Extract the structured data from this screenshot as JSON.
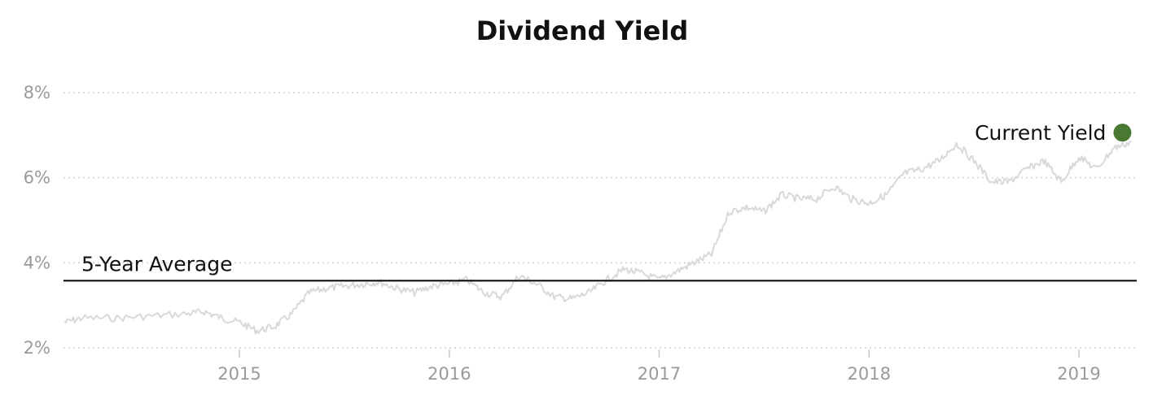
{
  "chart_data": {
    "type": "line",
    "title": "Dividend Yield",
    "xlabel": "",
    "ylabel": "",
    "x_ticks": [
      "2015",
      "2016",
      "2017",
      "2018",
      "2019"
    ],
    "y_ticks": [
      "2%",
      "4%",
      "6%",
      "8%"
    ],
    "ylim": [
      2,
      8
    ],
    "xlim": [
      "2014-03",
      "2019-04"
    ],
    "grid": "horizontal dotted",
    "series": [
      {
        "color": "#d9d9d9",
        "points": [
          [
            "2014-03",
            2.6
          ],
          [
            "2014-04",
            2.7
          ],
          [
            "2014-06",
            2.7
          ],
          [
            "2014-08",
            2.75
          ],
          [
            "2014-10",
            2.8
          ],
          [
            "2014-11",
            2.85
          ],
          [
            "2014-12",
            2.7
          ],
          [
            "2015-01",
            2.6
          ],
          [
            "2015-02",
            2.4
          ],
          [
            "2015-03",
            2.5
          ],
          [
            "2015-04",
            2.8
          ],
          [
            "2015-05",
            3.3
          ],
          [
            "2015-06",
            3.4
          ],
          [
            "2015-07",
            3.45
          ],
          [
            "2015-08",
            3.5
          ],
          [
            "2015-09",
            3.55
          ],
          [
            "2015-10",
            3.4
          ],
          [
            "2015-11",
            3.3
          ],
          [
            "2015-12",
            3.45
          ],
          [
            "2016-01",
            3.5
          ],
          [
            "2016-02",
            3.6
          ],
          [
            "2016-03",
            3.3
          ],
          [
            "2016-04",
            3.2
          ],
          [
            "2016-05",
            3.7
          ],
          [
            "2016-06",
            3.5
          ],
          [
            "2016-07",
            3.2
          ],
          [
            "2016-08",
            3.15
          ],
          [
            "2016-09",
            3.3
          ],
          [
            "2016-10",
            3.6
          ],
          [
            "2016-11",
            3.85
          ],
          [
            "2016-12",
            3.75
          ],
          [
            "2017-01",
            3.6
          ],
          [
            "2017-02",
            3.8
          ],
          [
            "2017-03",
            4.0
          ],
          [
            "2017-04",
            4.2
          ],
          [
            "2017-05",
            5.2
          ],
          [
            "2017-06",
            5.3
          ],
          [
            "2017-07",
            5.2
          ],
          [
            "2017-08",
            5.6
          ],
          [
            "2017-09",
            5.5
          ],
          [
            "2017-10",
            5.5
          ],
          [
            "2017-11",
            5.8
          ],
          [
            "2017-12",
            5.5
          ],
          [
            "2018-01",
            5.4
          ],
          [
            "2018-02",
            5.6
          ],
          [
            "2018-03",
            6.1
          ],
          [
            "2018-04",
            6.2
          ],
          [
            "2018-05",
            6.4
          ],
          [
            "2018-06",
            6.8
          ],
          [
            "2018-07",
            6.4
          ],
          [
            "2018-08",
            5.9
          ],
          [
            "2018-09",
            5.9
          ],
          [
            "2018-10",
            6.2
          ],
          [
            "2018-11",
            6.4
          ],
          [
            "2018-12",
            5.9
          ],
          [
            "2019-01",
            6.5
          ],
          [
            "2019-02",
            6.2
          ],
          [
            "2019-03",
            6.7
          ],
          [
            "2019-04",
            6.85
          ]
        ]
      }
    ],
    "five_year_average": {
      "label": "5-Year Average",
      "value": 3.58,
      "color": "#000000"
    },
    "current_yield": {
      "label": "Current Yield",
      "value": 6.85,
      "date": "2019-04",
      "color": "#4a7a32"
    }
  }
}
